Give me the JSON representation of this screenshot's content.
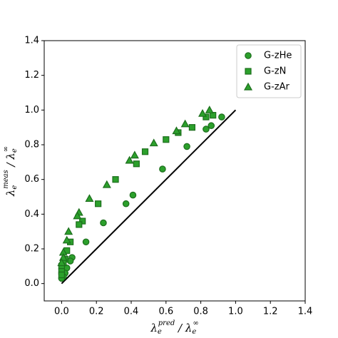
{
  "chart_data": {
    "type": "scatter",
    "xlabel": [
      "λ",
      "e",
      "pred",
      " / λ",
      "e",
      "∞"
    ],
    "ylabel": [
      "λ",
      "e",
      "meas",
      " / λ",
      "e",
      "∞"
    ],
    "xlim": [
      -0.1,
      1.4
    ],
    "ylim": [
      -0.1,
      1.4
    ],
    "xticks": [
      {
        "value": 0,
        "label": "0.0"
      },
      0.2,
      0.4,
      0.6,
      0.8,
      {
        "value": 1,
        "label": "1.0"
      },
      1.2,
      1.4
    ],
    "yticks": [
      {
        "value": 0,
        "label": "0.0"
      },
      0.2,
      0.4,
      0.6,
      0.8,
      {
        "value": 1,
        "label": "1.0"
      },
      1.2,
      1.4
    ],
    "legend": "upper right",
    "reference_line": {
      "x": [
        0,
        1
      ],
      "y": [
        0,
        1
      ],
      "color": "#000000"
    },
    "series": [
      {
        "name": "G-zHe",
        "color": "#2ca02c",
        "marker": "o",
        "x": [
          0.92,
          0.86,
          0.83,
          0.72,
          0.58,
          0.41,
          0.37,
          0.24,
          0.14,
          0.06,
          0.05,
          0.03,
          0.02,
          0.01,
          0.0
        ],
        "values": [
          0.96,
          0.91,
          0.89,
          0.79,
          0.66,
          0.51,
          0.46,
          0.35,
          0.24,
          0.15,
          0.13,
          0.09,
          0.06,
          0.04,
          0.03
        ]
      },
      {
        "name": "G-zN",
        "color": "#2ca02c",
        "marker": "s",
        "x": [
          0.87,
          0.83,
          0.75,
          0.67,
          0.6,
          0.48,
          0.43,
          0.31,
          0.21,
          0.12,
          0.1,
          0.05,
          0.03,
          0.02,
          0.01,
          0.0,
          0.0,
          0.0
        ],
        "values": [
          0.97,
          0.96,
          0.9,
          0.87,
          0.83,
          0.76,
          0.69,
          0.6,
          0.46,
          0.36,
          0.34,
          0.24,
          0.19,
          0.14,
          0.12,
          0.1,
          0.07,
          0.05
        ]
      },
      {
        "name": "G-zAr",
        "color": "#2ca02c",
        "marker": "^",
        "x": [
          0.85,
          0.81,
          0.71,
          0.66,
          0.53,
          0.42,
          0.39,
          0.26,
          0.16,
          0.1,
          0.09,
          0.04,
          0.03,
          0.01,
          0.01,
          0.0
        ],
        "values": [
          1.0,
          0.98,
          0.92,
          0.88,
          0.81,
          0.74,
          0.71,
          0.57,
          0.49,
          0.41,
          0.39,
          0.3,
          0.25,
          0.18,
          0.15,
          0.12
        ]
      }
    ]
  }
}
